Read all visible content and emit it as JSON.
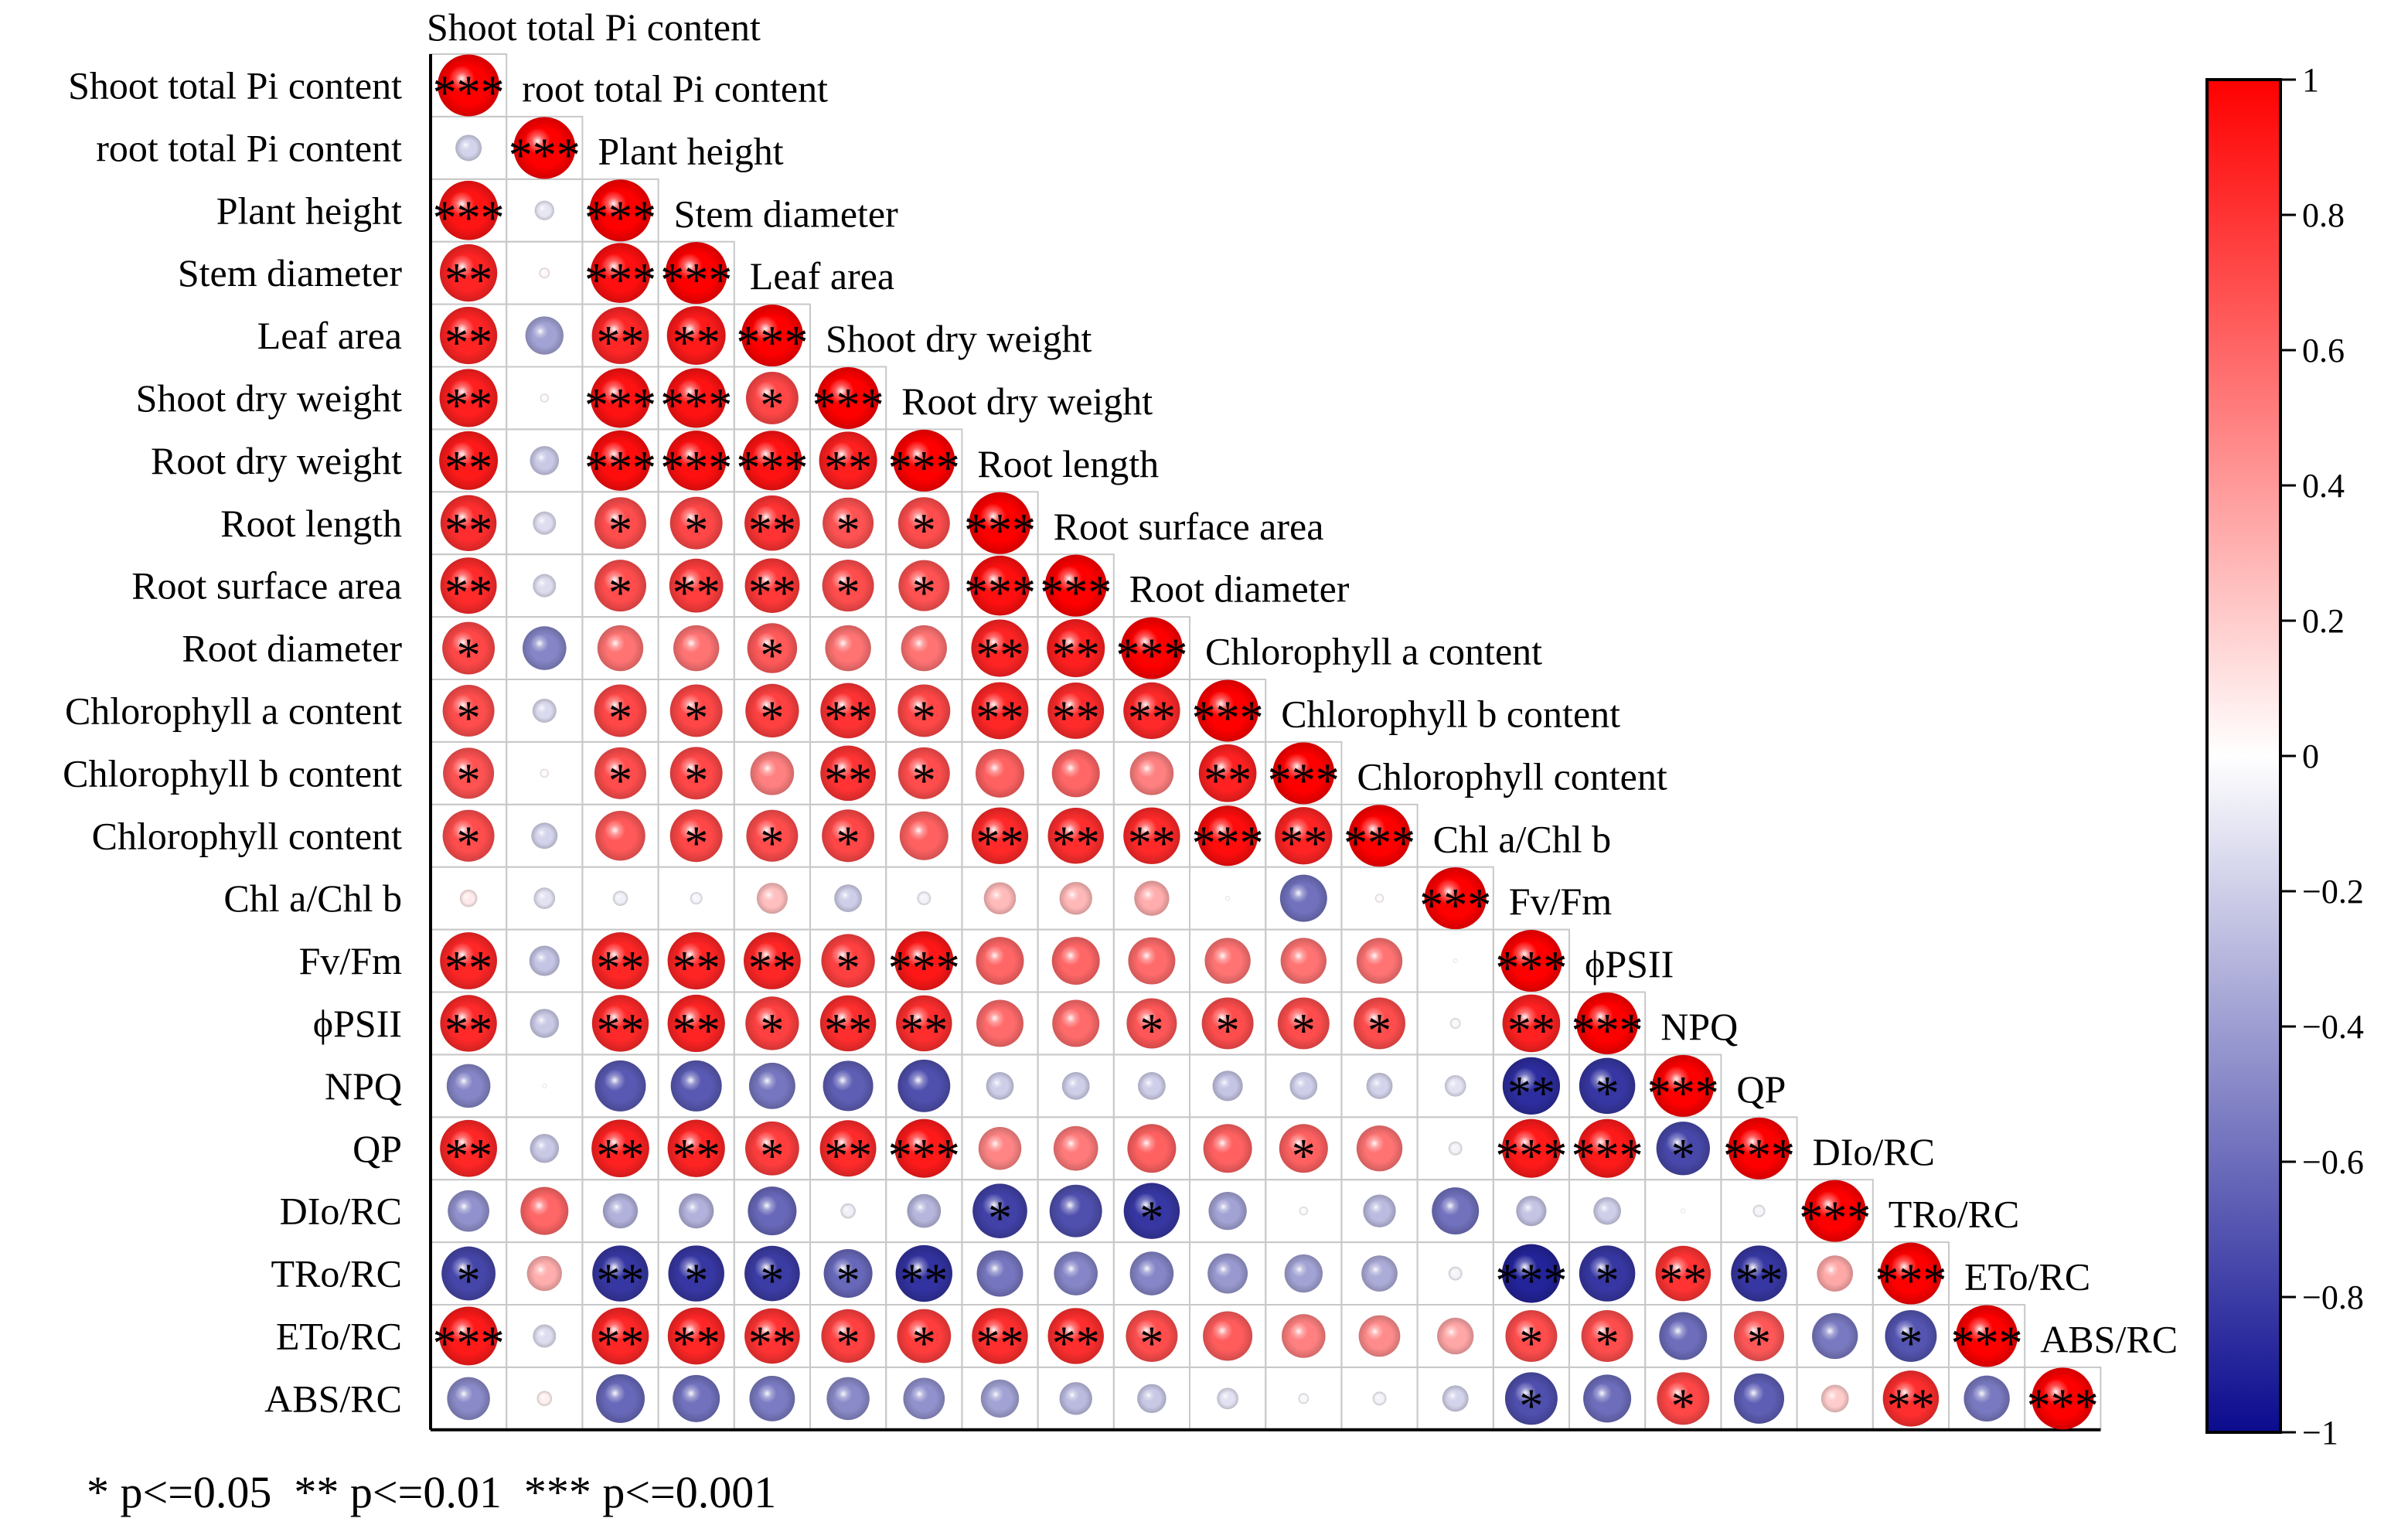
{
  "chart_data": {
    "type": "heatmap",
    "variables": [
      "Shoot total Pi content",
      "root total Pi content",
      "Plant height",
      "Stem diameter",
      "Leaf area",
      "Shoot dry weight",
      "Root dry weight",
      "Root length",
      "Root surface area",
      "Root diameter",
      "Chlorophyll a content",
      "Chlorophyll b content",
      "Chlorophyll content",
      "Chl a/Chl b",
      "Fv/Fm",
      "ϕPSII",
      "NPQ",
      "QP",
      "DIo/RC",
      "TRo/RC",
      "ETo/RC",
      "ABS/RC"
    ],
    "lower_triangle_values": [
      [
        1
      ],
      [
        -0.18,
        1
      ],
      [
        0.92,
        -0.1,
        1
      ],
      [
        0.86,
        0.03,
        0.94,
        1
      ],
      [
        0.86,
        -0.38,
        0.85,
        0.9,
        1
      ],
      [
        0.88,
        0.02,
        0.93,
        0.93,
        0.72,
        1
      ],
      [
        0.9,
        -0.22,
        0.95,
        0.94,
        0.93,
        0.88,
        1
      ],
      [
        0.82,
        -0.14,
        0.7,
        0.72,
        0.8,
        0.68,
        0.7,
        1
      ],
      [
        0.83,
        -0.14,
        0.7,
        0.76,
        0.78,
        0.7,
        0.68,
        0.94,
        1
      ],
      [
        0.72,
        -0.5,
        0.55,
        0.55,
        0.65,
        0.55,
        0.55,
        0.86,
        0.88,
        1
      ],
      [
        0.7,
        -0.15,
        0.72,
        0.72,
        0.75,
        0.8,
        0.72,
        0.85,
        0.83,
        0.84,
        1
      ],
      [
        0.68,
        0.02,
        0.7,
        0.72,
        0.5,
        0.8,
        0.7,
        0.62,
        0.6,
        0.5,
        0.87,
        1
      ],
      [
        0.7,
        -0.18,
        0.65,
        0.72,
        0.7,
        0.72,
        0.62,
        0.84,
        0.82,
        0.84,
        0.95,
        0.86,
        1
      ],
      [
        0.08,
        -0.12,
        -0.06,
        -0.04,
        0.25,
        -0.2,
        -0.05,
        0.27,
        0.28,
        0.32,
        0.0,
        -0.58,
        0.02,
        1
      ],
      [
        0.85,
        -0.24,
        0.85,
        0.86,
        0.85,
        0.75,
        0.91,
        0.6,
        0.6,
        0.58,
        0.55,
        0.55,
        0.55,
        0.0,
        1
      ],
      [
        0.84,
        -0.22,
        0.84,
        0.86,
        0.75,
        0.82,
        0.82,
        0.58,
        0.58,
        0.66,
        0.7,
        0.7,
        0.7,
        -0.03,
        0.87,
        1
      ],
      [
        -0.5,
        0.0,
        -0.68,
        -0.68,
        -0.56,
        -0.66,
        -0.72,
        -0.2,
        -0.2,
        -0.2,
        -0.24,
        -0.2,
        -0.18,
        -0.12,
        -0.86,
        -0.82,
        1
      ],
      [
        0.85,
        -0.22,
        0.87,
        0.86,
        0.76,
        0.83,
        0.9,
        0.48,
        0.52,
        0.62,
        0.62,
        0.62,
        0.55,
        -0.05,
        0.9,
        0.9,
        -0.75,
        1
      ],
      [
        -0.45,
        0.6,
        -0.32,
        -0.32,
        -0.62,
        -0.06,
        -0.3,
        -0.78,
        -0.72,
        -0.82,
        -0.38,
        -0.02,
        -0.28,
        -0.58,
        -0.24,
        -0.2,
        0.0,
        -0.04,
        1
      ],
      [
        -0.76,
        0.32,
        -0.82,
        -0.82,
        -0.8,
        -0.62,
        -0.84,
        -0.56,
        -0.5,
        -0.5,
        -0.42,
        -0.38,
        -0.34,
        -0.05,
        -0.9,
        -0.82,
        0.8,
        -0.82,
        0.34,
        1
      ],
      [
        0.9,
        -0.14,
        0.85,
        0.85,
        0.8,
        0.75,
        0.76,
        0.82,
        0.82,
        0.7,
        0.64,
        0.5,
        0.45,
        0.35,
        0.7,
        0.7,
        -0.6,
        0.66,
        -0.55,
        -0.7,
        1
      ],
      [
        -0.48,
        0.06,
        -0.62,
        -0.58,
        -0.54,
        -0.48,
        -0.45,
        -0.38,
        -0.28,
        -0.22,
        -0.12,
        -0.03,
        -0.05,
        -0.18,
        -0.72,
        -0.6,
        0.72,
        -0.66,
        0.2,
        0.82,
        -0.55,
        1
      ]
    ],
    "lower_triangle_significance": [
      [
        "***"
      ],
      [
        "",
        "***"
      ],
      [
        "***",
        "",
        "***"
      ],
      [
        "**",
        "",
        "***",
        "***"
      ],
      [
        "**",
        "",
        "**",
        "**",
        "***"
      ],
      [
        "**",
        "",
        "***",
        "***",
        "*",
        "***"
      ],
      [
        "**",
        "",
        "***",
        "***",
        "***",
        "**",
        "***"
      ],
      [
        "**",
        "",
        "*",
        "*",
        "**",
        "*",
        "*",
        "***"
      ],
      [
        "**",
        "",
        "*",
        "**",
        "**",
        "*",
        "*",
        "***",
        "***"
      ],
      [
        "*",
        "",
        "",
        "",
        "*",
        "",
        "",
        "**",
        "**",
        "***"
      ],
      [
        "*",
        "",
        "*",
        "*",
        "*",
        "**",
        "*",
        "**",
        "**",
        "**",
        "***"
      ],
      [
        "*",
        "",
        "*",
        "*",
        "",
        "**",
        "*",
        "",
        "",
        "",
        "**",
        "***"
      ],
      [
        "*",
        "",
        "",
        "*",
        "*",
        "*",
        "",
        "**",
        "**",
        "**",
        "***",
        "**",
        "***"
      ],
      [
        "",
        "",
        "",
        "",
        "",
        "",
        "",
        "",
        "",
        "",
        "",
        "",
        "",
        "***"
      ],
      [
        "**",
        "",
        "**",
        "**",
        "**",
        "*",
        "***",
        "",
        "",
        "",
        "",
        "",
        "",
        "",
        "***"
      ],
      [
        "**",
        "",
        "**",
        "**",
        "*",
        "**",
        "**",
        "",
        "",
        "*",
        "*",
        "*",
        "*",
        "",
        "**",
        "***"
      ],
      [
        "",
        "",
        "",
        "",
        "",
        "",
        "",
        "",
        "",
        "",
        "",
        "",
        "",
        "",
        "**",
        "*",
        "***"
      ],
      [
        "**",
        "",
        "**",
        "**",
        "*",
        "**",
        "***",
        "",
        "",
        "",
        "",
        "*",
        "",
        "",
        "***",
        "***",
        "*",
        "***"
      ],
      [
        "",
        "",
        "",
        "",
        "",
        "",
        "",
        "*",
        "",
        "*",
        "",
        "",
        "",
        "",
        "",
        "",
        "",
        "",
        "***"
      ],
      [
        "*",
        "",
        "**",
        "*",
        "*",
        "*",
        "**",
        "",
        "",
        "",
        "",
        "",
        "",
        "",
        "***",
        "*",
        "**",
        "**",
        "",
        "***"
      ],
      [
        "***",
        "",
        "**",
        "**",
        "**",
        "*",
        "*",
        "**",
        "**",
        "*",
        "",
        "",
        "",
        "",
        "*",
        "*",
        "",
        "*",
        "",
        "*",
        "***"
      ],
      [
        "",
        "",
        "",
        "",
        "",
        "",
        "",
        "",
        "",
        "",
        "",
        "",
        "",
        "",
        "*",
        "",
        "*",
        "",
        "",
        "**",
        "",
        "***"
      ]
    ],
    "colorbar": {
      "range": [
        -1,
        1
      ],
      "ticks": [
        "1",
        "0.8",
        "0.6",
        "0.4",
        "0.2",
        "0",
        "−0.2",
        "−0.4",
        "−0.6",
        "−0.8",
        "−1"
      ],
      "colors": {
        "negative": "#0b0b8f",
        "zero": "#ffffff",
        "positive": "#ff0000"
      }
    },
    "top_label": "Shoot total Pi content",
    "legend_text": "* p<=0.05  ** p<=0.01  *** p<=0.001"
  }
}
